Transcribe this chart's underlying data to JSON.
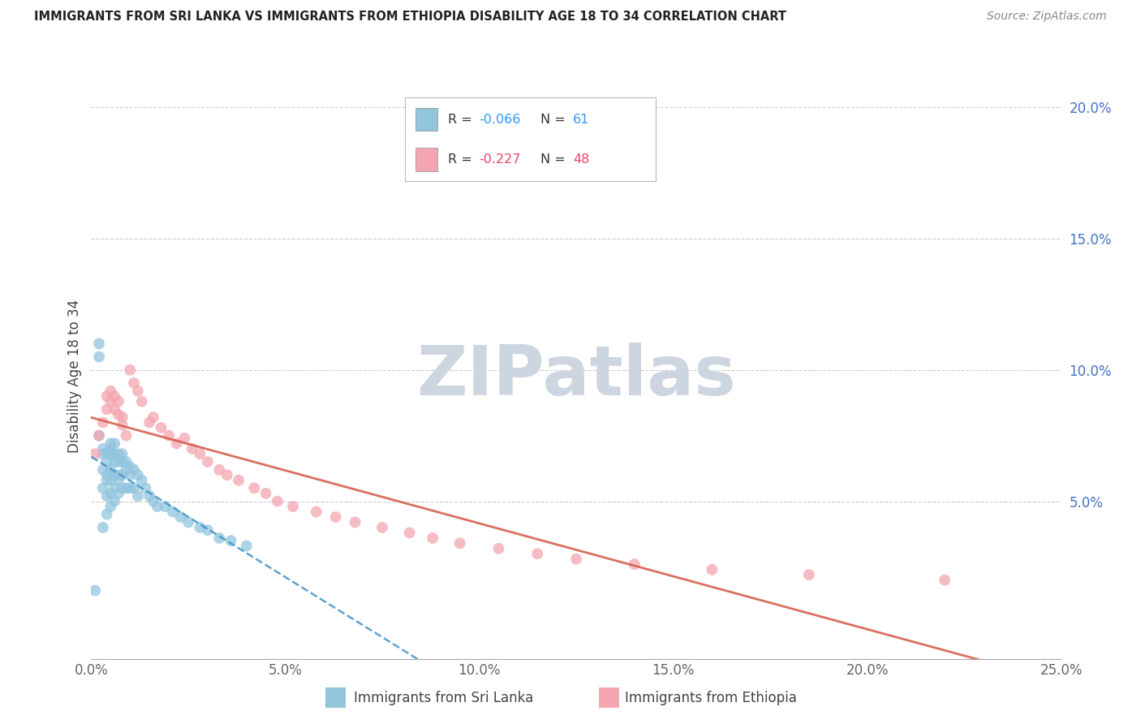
{
  "title": "IMMIGRANTS FROM SRI LANKA VS IMMIGRANTS FROM ETHIOPIA DISABILITY AGE 18 TO 34 CORRELATION CHART",
  "source": "Source: ZipAtlas.com",
  "ylabel": "Disability Age 18 to 34",
  "ylabel_right_ticks": [
    "20.0%",
    "15.0%",
    "10.0%",
    "5.0%"
  ],
  "ylabel_right_vals": [
    0.2,
    0.15,
    0.1,
    0.05
  ],
  "xlim": [
    0.0,
    0.25
  ],
  "ylim": [
    -0.01,
    0.205
  ],
  "legend_sri_lanka": "Immigrants from Sri Lanka",
  "legend_ethiopia": "Immigrants from Ethiopia",
  "r_sri_lanka": -0.066,
  "n_sri_lanka": 61,
  "r_ethiopia": -0.227,
  "n_ethiopia": 48,
  "color_sri_lanka": "#92c5de",
  "color_ethiopia": "#f4a6b0",
  "trendline_sri_lanka_color": "#4393c3",
  "trendline_ethiopia_color": "#d6604d",
  "background_color": "#ffffff",
  "grid_color": "#cccccc",
  "watermark": "ZIPatlas",
  "watermark_color": "#ccd5e0",
  "sri_lanka_x": [
    0.001,
    0.002,
    0.002,
    0.002,
    0.003,
    0.003,
    0.003,
    0.003,
    0.003,
    0.004,
    0.004,
    0.004,
    0.004,
    0.004,
    0.004,
    0.005,
    0.005,
    0.005,
    0.005,
    0.005,
    0.005,
    0.005,
    0.006,
    0.006,
    0.006,
    0.006,
    0.006,
    0.006,
    0.007,
    0.007,
    0.007,
    0.007,
    0.007,
    0.008,
    0.008,
    0.008,
    0.008,
    0.009,
    0.009,
    0.009,
    0.01,
    0.01,
    0.01,
    0.011,
    0.011,
    0.012,
    0.012,
    0.013,
    0.014,
    0.015,
    0.016,
    0.017,
    0.019,
    0.021,
    0.023,
    0.025,
    0.028,
    0.03,
    0.033,
    0.036,
    0.04
  ],
  "sri_lanka_y": [
    0.016,
    0.11,
    0.105,
    0.075,
    0.068,
    0.07,
    0.062,
    0.055,
    0.04,
    0.068,
    0.065,
    0.06,
    0.058,
    0.052,
    0.045,
    0.072,
    0.07,
    0.068,
    0.062,
    0.058,
    0.053,
    0.048,
    0.072,
    0.068,
    0.065,
    0.06,
    0.055,
    0.05,
    0.068,
    0.065,
    0.06,
    0.058,
    0.053,
    0.068,
    0.065,
    0.06,
    0.055,
    0.065,
    0.062,
    0.055,
    0.063,
    0.06,
    0.055,
    0.062,
    0.055,
    0.06,
    0.052,
    0.058,
    0.055,
    0.052,
    0.05,
    0.048,
    0.048,
    0.046,
    0.044,
    0.042,
    0.04,
    0.039,
    0.036,
    0.035,
    0.033
  ],
  "ethiopia_x": [
    0.001,
    0.002,
    0.003,
    0.004,
    0.004,
    0.005,
    0.005,
    0.006,
    0.006,
    0.007,
    0.007,
    0.008,
    0.008,
    0.009,
    0.01,
    0.011,
    0.012,
    0.013,
    0.015,
    0.016,
    0.018,
    0.02,
    0.022,
    0.024,
    0.026,
    0.028,
    0.03,
    0.033,
    0.035,
    0.038,
    0.042,
    0.045,
    0.048,
    0.052,
    0.058,
    0.063,
    0.068,
    0.075,
    0.082,
    0.088,
    0.095,
    0.105,
    0.115,
    0.125,
    0.14,
    0.16,
    0.185,
    0.22
  ],
  "ethiopia_y": [
    0.068,
    0.075,
    0.08,
    0.09,
    0.085,
    0.092,
    0.088,
    0.09,
    0.085,
    0.083,
    0.088,
    0.082,
    0.079,
    0.075,
    0.1,
    0.095,
    0.092,
    0.088,
    0.08,
    0.082,
    0.078,
    0.075,
    0.072,
    0.074,
    0.07,
    0.068,
    0.065,
    0.062,
    0.06,
    0.058,
    0.055,
    0.053,
    0.05,
    0.048,
    0.046,
    0.044,
    0.042,
    0.04,
    0.038,
    0.036,
    0.034,
    0.032,
    0.03,
    0.028,
    0.026,
    0.024,
    0.022,
    0.02
  ]
}
